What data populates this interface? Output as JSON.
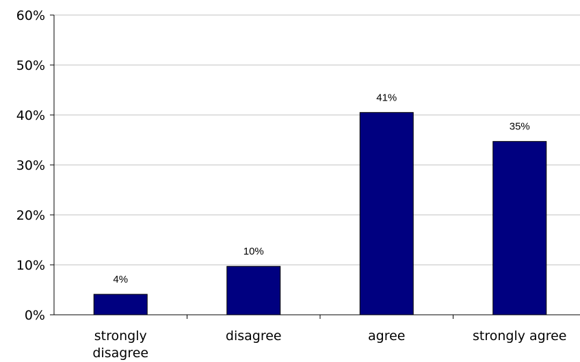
{
  "chart_data": {
    "type": "bar",
    "categories": [
      [
        "strongly",
        "disagree"
      ],
      [
        "disagree"
      ],
      [
        "agree"
      ],
      [
        "strongly agree"
      ]
    ],
    "values": [
      4,
      10,
      41,
      35
    ],
    "bar_heights_pct": [
      4.1,
      9.7,
      40.5,
      34.7
    ],
    "data_labels": [
      "4%",
      "10%",
      "41%",
      "35%"
    ],
    "y_ticks": [
      "0%",
      "10%",
      "20%",
      "30%",
      "40%",
      "50%",
      "60%"
    ],
    "ylim": [
      0,
      60
    ],
    "grid": true,
    "legend": false,
    "title": "",
    "xlabel": "",
    "ylabel": "",
    "colors": {
      "bar_fill": "#000080",
      "bar_stroke": "#000000",
      "grid": "#c0c0c0",
      "axis": "#000000"
    }
  }
}
